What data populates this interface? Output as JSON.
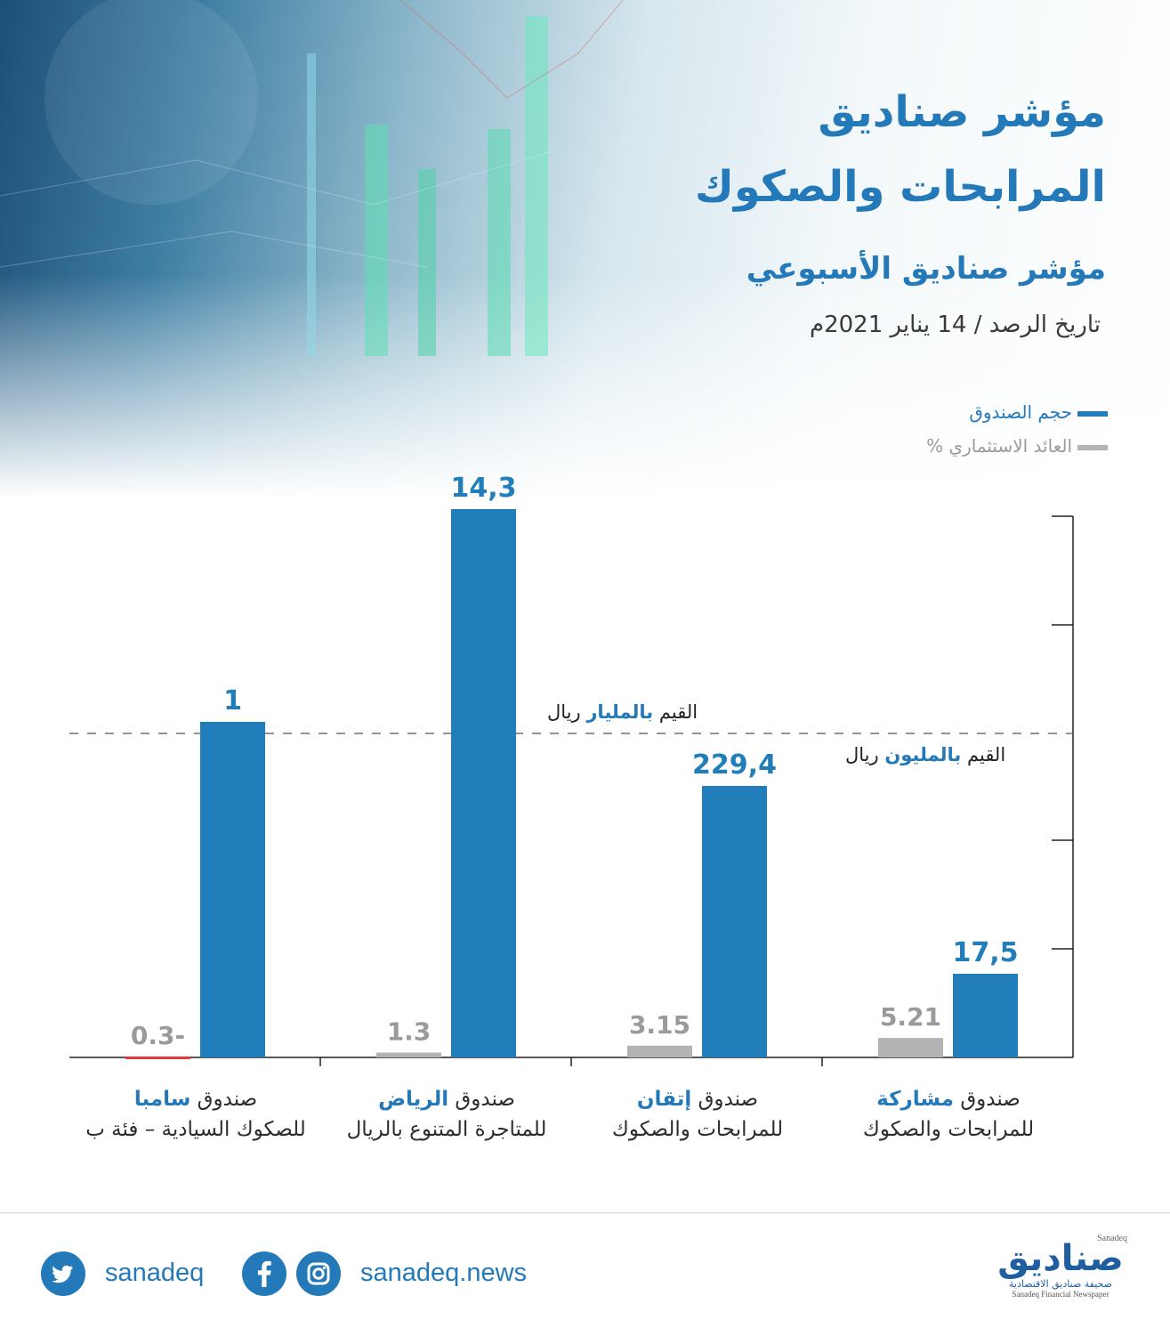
{
  "header": {
    "title_line1": "مؤشر صناديق",
    "title_line2": "المرابحات والصكوك",
    "subtitle": "مؤشر صناديق الأسبوعي",
    "date": "تاريخ الرصد / 14 يناير 2021م"
  },
  "legend": {
    "fund_size": "حجم الصندوق",
    "return": "العائد الاستثماري %"
  },
  "colors": {
    "accent": "#2479b9",
    "bar_blue": "#227ebb",
    "bar_gray": "#b3b3b6",
    "negative": "#e23b3b",
    "gray_text": "#9a9a9c"
  },
  "units": {
    "billion_prefix": "القيم",
    "billion_word": "بالمليار",
    "billion_suffix": "ريال",
    "million_prefix": "القيم",
    "million_word": "بالمليون",
    "million_suffix": "ريال"
  },
  "chart_data": {
    "type": "bar",
    "categories": [
      {
        "prefix": "صندوق",
        "name": "مشاركة",
        "line2": "للمرابحات والصكوك"
      },
      {
        "prefix": "صندوق",
        "name": "إتقان",
        "line2": "للمرابحات والصكوك"
      },
      {
        "prefix": "صندوق",
        "name": "الرياض",
        "line2": "للمتاجرة المتنوع بالريال"
      },
      {
        "prefix": "صندوق",
        "name": "سامبا",
        "line2": "للصكوك السيادية – فئة ب"
      }
    ],
    "series": [
      {
        "name": "حجم الصندوق",
        "values": [
          17.5,
          229.4,
          14.3,
          1
        ],
        "units": [
          "million",
          "million",
          "billion",
          "billion"
        ],
        "labels": [
          "17,5",
          "229,4",
          "14,3",
          "1"
        ]
      },
      {
        "name": "العائد الاستثماري %",
        "values": [
          5.21,
          3.15,
          1.3,
          -0.3
        ],
        "labels": [
          "5.21",
          "3.15",
          "1.3",
          "0.3-"
        ]
      }
    ],
    "axis_breaks": "dashed divider separates million-riyal scale (below) from billion-riyal scale (above)"
  },
  "footer": {
    "twitter_handle": "sanadeq",
    "website": "sanadeq.news",
    "logo_main": "صناديق",
    "logo_top": "Sanadeq",
    "logo_sub_ar": "صحيفة صناديق الاقتصادية",
    "logo_sub_en": "Sanadeq Financial Newspaper"
  }
}
